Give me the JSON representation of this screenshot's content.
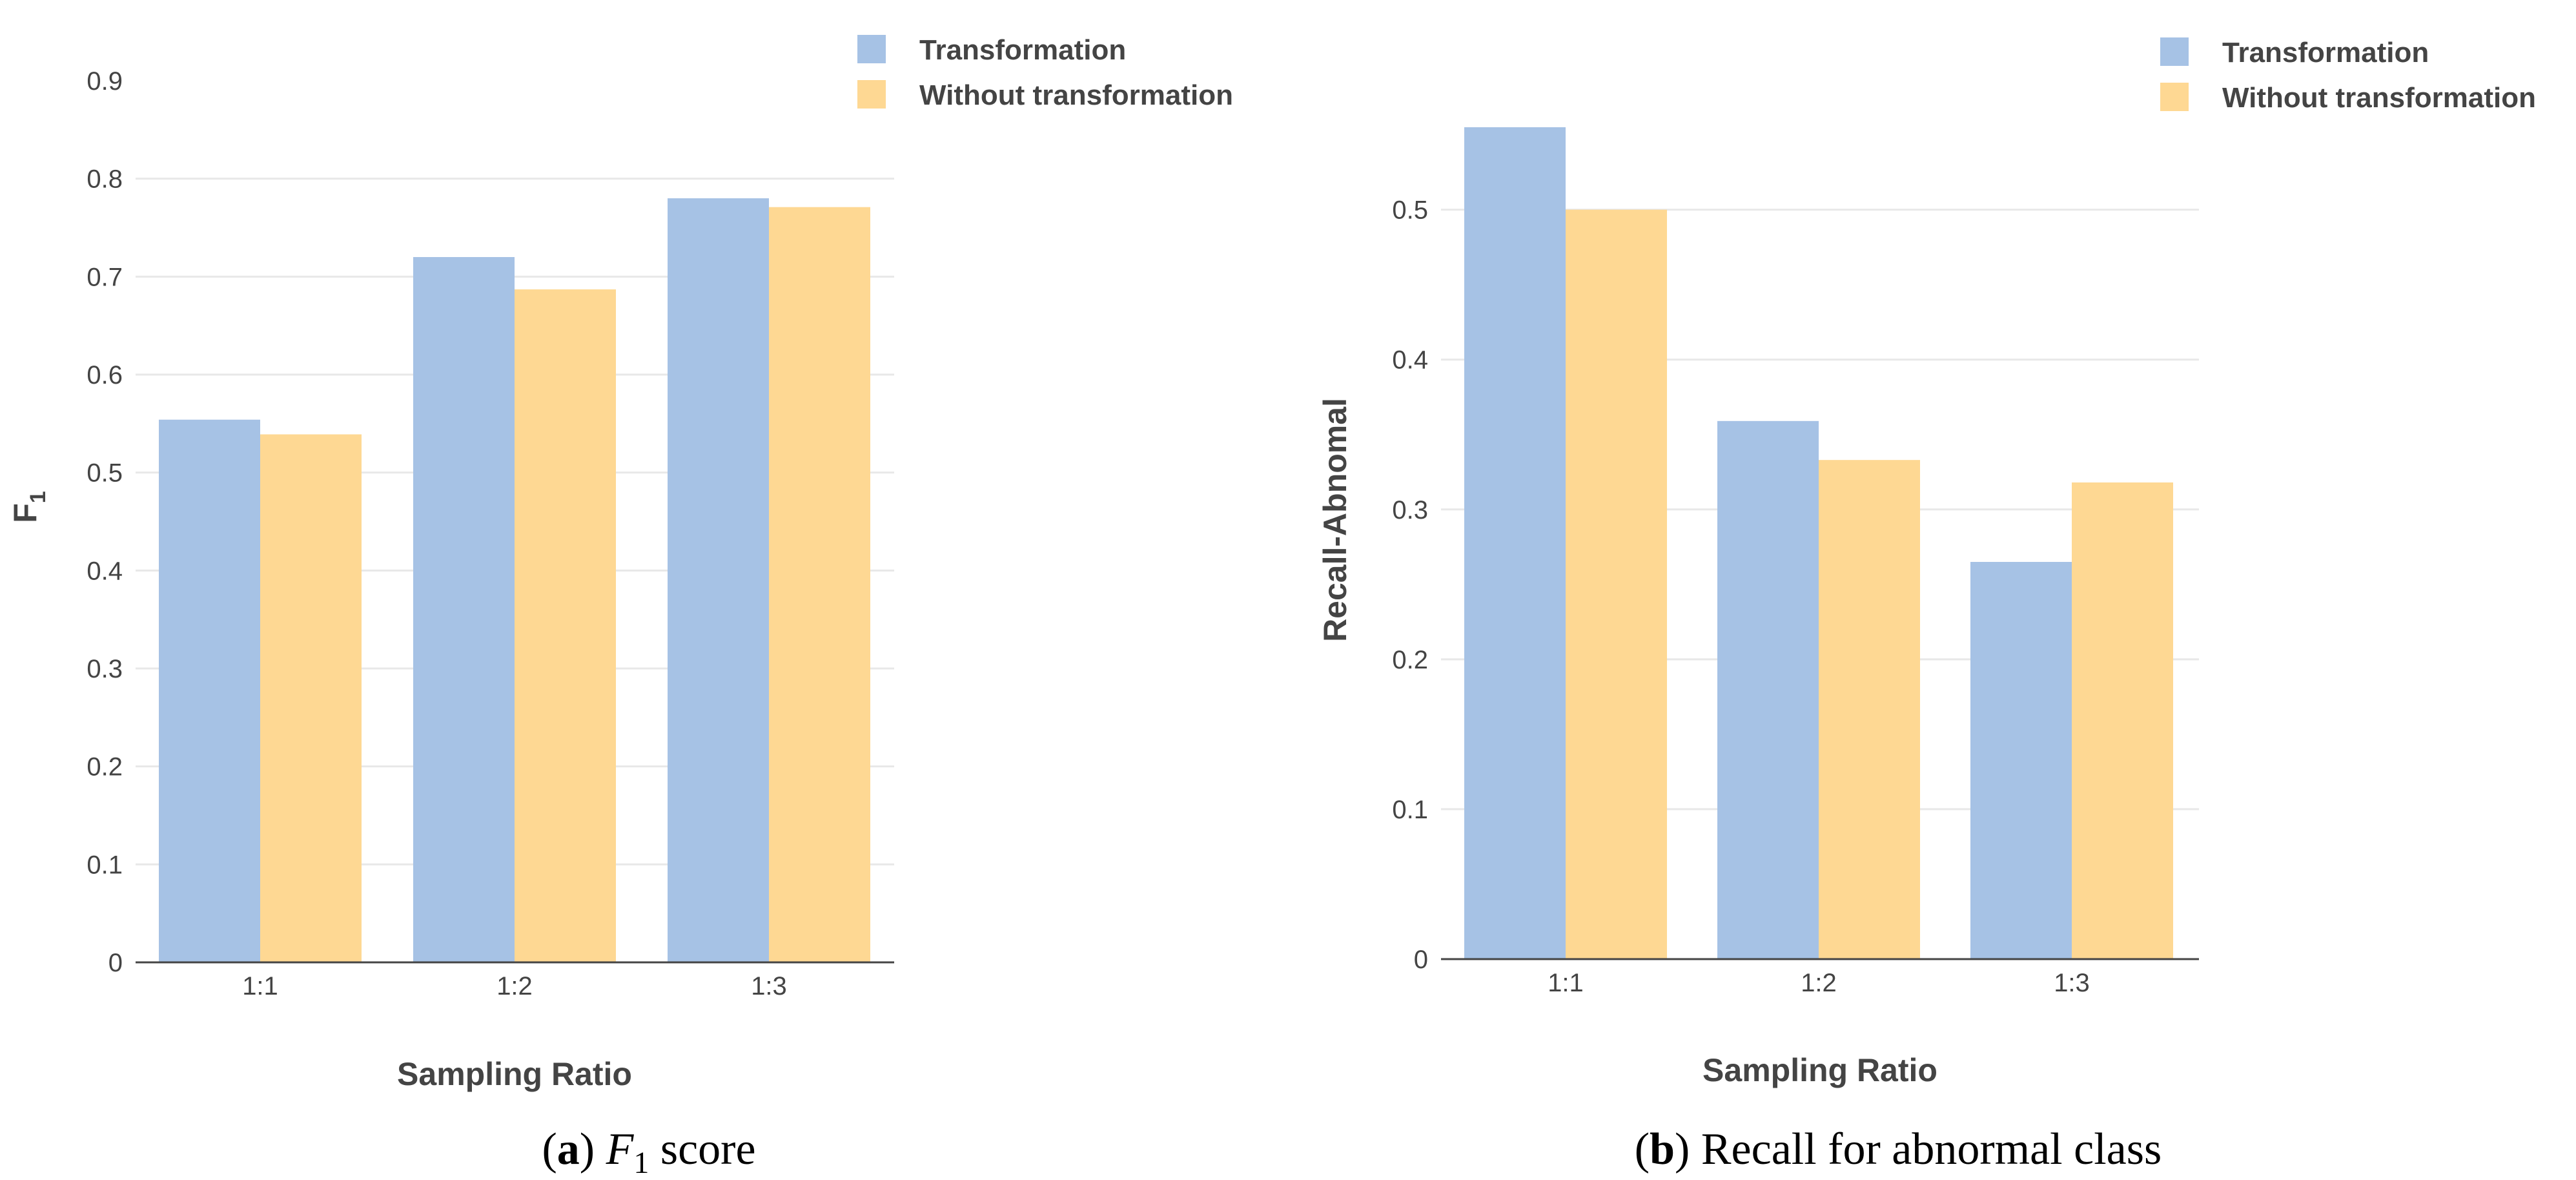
{
  "colors": {
    "transformation": "#A6C2E5",
    "without_transformation": "#FED893",
    "grid": "#E8E8E8",
    "axis": "#444444"
  },
  "chart_data": [
    {
      "type": "bar",
      "title": "",
      "xlabel": "Sampling Ratio",
      "ylabel_base": "F",
      "ylabel_sub": "1",
      "categories": [
        "1:1",
        "1:2",
        "1:3"
      ],
      "series": [
        {
          "name": "Transformation",
          "values": [
            0.554,
            0.72,
            0.78
          ]
        },
        {
          "name": "Without transformation",
          "values": [
            0.539,
            0.687,
            0.771
          ]
        }
      ],
      "ylim": [
        0,
        0.9
      ],
      "yticks": [
        0,
        0.1,
        0.2,
        0.3,
        0.4,
        0.5,
        0.6,
        0.7,
        0.8,
        0.9
      ],
      "ytick_labels": [
        "0",
        "0.1",
        "0.2",
        "0.3",
        "0.4",
        "0.5",
        "0.6",
        "0.7",
        "0.8",
        "0.9"
      ],
      "legend_position": "top-right",
      "caption": {
        "letter": "a",
        "math_base": "F",
        "math_sub": "1",
        "text": " score"
      }
    },
    {
      "type": "bar",
      "title": "",
      "xlabel": "Sampling Ratio",
      "ylabel": "Recall-Abnomal",
      "categories": [
        "1:1",
        "1:2",
        "1:3"
      ],
      "series": [
        {
          "name": "Transformation",
          "values": [
            0.555,
            0.359,
            0.265
          ]
        },
        {
          "name": "Without transformation",
          "values": [
            0.5,
            0.333,
            0.318
          ]
        }
      ],
      "ylim": [
        0,
        0.555
      ],
      "yticks": [
        0,
        0.1,
        0.2,
        0.3,
        0.4,
        0.5
      ],
      "ytick_labels": [
        "0",
        "0.1",
        "0.2",
        "0.3",
        "0.4",
        "0.5"
      ],
      "legend_position": "top-right",
      "caption": {
        "letter": "b",
        "text": "Recall for abnormal class"
      }
    }
  ]
}
